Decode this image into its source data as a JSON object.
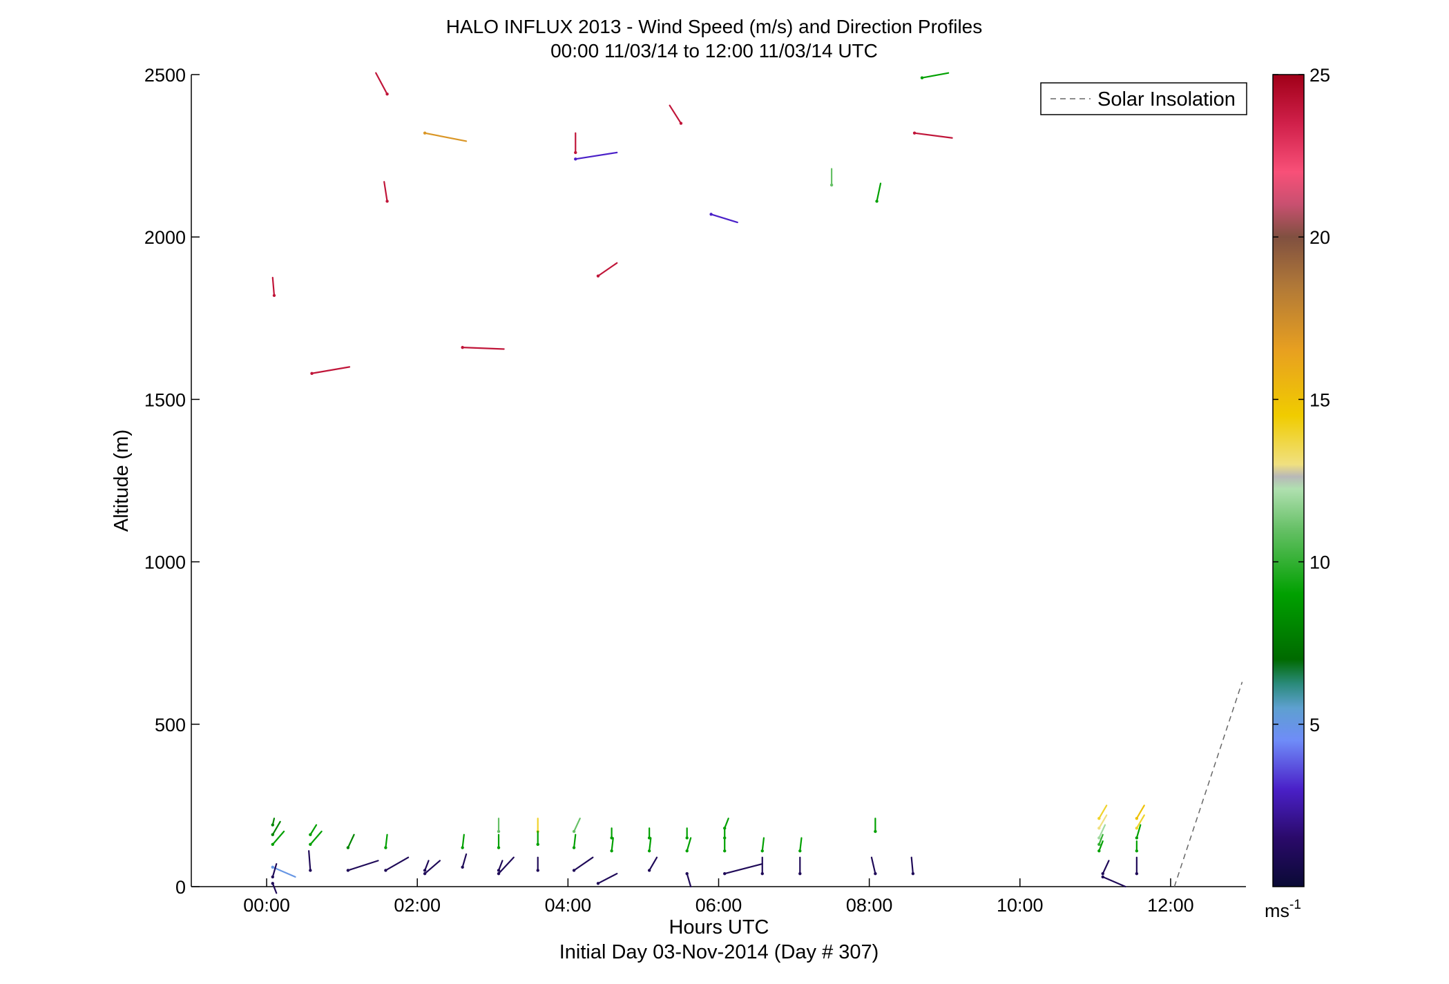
{
  "chart_data": {
    "type": "scatter",
    "title": "HALO INFLUX 2013 - Wind Speed (m/s) and Direction Profiles",
    "subtitle": "00:00 11/03/14 to 12:00 11/03/14  UTC",
    "xlabel": "Hours UTC",
    "xlabel2": "Initial Day 03-Nov-2014 (Day # 307)",
    "ylabel": "Altitude (m)",
    "xlim": [
      -1.0,
      13.0
    ],
    "ylim": [
      0,
      2500
    ],
    "xticks": [
      0,
      2,
      4,
      6,
      8,
      10,
      12
    ],
    "xtick_labels": [
      "00:00",
      "02:00",
      "04:00",
      "06:00",
      "08:00",
      "10:00",
      "12:00"
    ],
    "yticks": [
      0,
      500,
      1000,
      1500,
      2000,
      2500
    ],
    "ytick_labels": [
      "0",
      "500",
      "1000",
      "1500",
      "2000",
      "2500"
    ],
    "legend": {
      "label": "Solar Insolation",
      "position": "top-right"
    },
    "colorbar": {
      "min": 0,
      "max": 25,
      "ticks": [
        5,
        10,
        15,
        20,
        25
      ],
      "tick_labels": [
        "5",
        "10",
        "15",
        "20",
        "25"
      ],
      "unit_label": "ms",
      "unit_exponent": "-1"
    },
    "solar_insolation": [
      [
        12.05,
        0
      ],
      [
        12.95,
        630
      ]
    ],
    "series": [
      {
        "x": 0.1,
        "y": 1820,
        "dx": -0.02,
        "dy": 55,
        "speed": 24
      },
      {
        "x": 0.6,
        "y": 1580,
        "dx": 0.5,
        "dy": 20,
        "speed": 24
      },
      {
        "x": 1.6,
        "y": 2110,
        "dx": -0.04,
        "dy": 60,
        "speed": 24
      },
      {
        "x": 1.6,
        "y": 2440,
        "dx": -0.15,
        "dy": 65,
        "speed": 24
      },
      {
        "x": 2.1,
        "y": 2320,
        "dx": 0.55,
        "dy": -25,
        "speed": 17
      },
      {
        "x": 2.6,
        "y": 1660,
        "dx": 0.55,
        "dy": -5,
        "speed": 24
      },
      {
        "x": 4.1,
        "y": 2260,
        "dx": 0.0,
        "dy": 60,
        "speed": 24
      },
      {
        "x": 4.1,
        "y": 2240,
        "dx": 0.55,
        "dy": 20,
        "speed": 3
      },
      {
        "x": 4.4,
        "y": 1880,
        "dx": 0.25,
        "dy": 40,
        "speed": 24
      },
      {
        "x": 5.5,
        "y": 2350,
        "dx": -0.15,
        "dy": 55,
        "speed": 24
      },
      {
        "x": 5.9,
        "y": 2070,
        "dx": 0.35,
        "dy": -25,
        "speed": 3
      },
      {
        "x": 7.5,
        "y": 2160,
        "dx": 0.0,
        "dy": 50,
        "speed": 11
      },
      {
        "x": 8.1,
        "y": 2110,
        "dx": 0.05,
        "dy": 55,
        "speed": 9
      },
      {
        "x": 8.7,
        "y": 2490,
        "dx": 0.35,
        "dy": 15,
        "speed": 9
      },
      {
        "x": 8.6,
        "y": 2320,
        "dx": 0.5,
        "dy": -15,
        "speed": 24
      },
      {
        "x": 0.08,
        "y": 190,
        "dx": 0.02,
        "dy": 20,
        "speed": 8
      },
      {
        "x": 0.08,
        "y": 160,
        "dx": 0.1,
        "dy": 40,
        "speed": 8
      },
      {
        "x": 0.08,
        "y": 130,
        "dx": 0.15,
        "dy": 40,
        "speed": 9
      },
      {
        "x": 0.08,
        "y": 60,
        "dx": 0.3,
        "dy": -30,
        "speed": 5
      },
      {
        "x": 0.08,
        "y": 30,
        "dx": 0.05,
        "dy": 40,
        "speed": 1
      },
      {
        "x": 0.08,
        "y": 10,
        "dx": 0.05,
        "dy": -30,
        "speed": 1
      },
      {
        "x": 0.58,
        "y": 160,
        "dx": 0.08,
        "dy": 30,
        "speed": 9
      },
      {
        "x": 0.58,
        "y": 130,
        "dx": 0.15,
        "dy": 40,
        "speed": 9
      },
      {
        "x": 0.58,
        "y": 50,
        "dx": -0.02,
        "dy": 60,
        "speed": 1
      },
      {
        "x": 1.08,
        "y": 120,
        "dx": 0.08,
        "dy": 40,
        "speed": 8
      },
      {
        "x": 1.08,
        "y": 50,
        "dx": 0.4,
        "dy": 30,
        "speed": 1
      },
      {
        "x": 1.58,
        "y": 120,
        "dx": 0.02,
        "dy": 40,
        "speed": 9
      },
      {
        "x": 1.58,
        "y": 50,
        "dx": 0.3,
        "dy": 40,
        "speed": 1
      },
      {
        "x": 2.1,
        "y": 40,
        "dx": 0.2,
        "dy": 40,
        "speed": 1
      },
      {
        "x": 2.1,
        "y": 50,
        "dx": 0.05,
        "dy": 30,
        "speed": 1
      },
      {
        "x": 2.6,
        "y": 120,
        "dx": 0.02,
        "dy": 40,
        "speed": 9
      },
      {
        "x": 2.6,
        "y": 60,
        "dx": 0.05,
        "dy": 40,
        "speed": 1
      },
      {
        "x": 3.08,
        "y": 170,
        "dx": 0.0,
        "dy": 40,
        "speed": 11
      },
      {
        "x": 3.08,
        "y": 120,
        "dx": 0.0,
        "dy": 40,
        "speed": 9
      },
      {
        "x": 3.08,
        "y": 40,
        "dx": 0.2,
        "dy": 50,
        "speed": 1
      },
      {
        "x": 3.08,
        "y": 50,
        "dx": 0.05,
        "dy": 30,
        "speed": 1
      },
      {
        "x": 3.6,
        "y": 170,
        "dx": 0.0,
        "dy": 40,
        "speed": 14
      },
      {
        "x": 3.6,
        "y": 130,
        "dx": 0.0,
        "dy": 40,
        "speed": 9
      },
      {
        "x": 3.6,
        "y": 50,
        "dx": 0.0,
        "dy": 40,
        "speed": 1
      },
      {
        "x": 4.08,
        "y": 170,
        "dx": 0.08,
        "dy": 40,
        "speed": 11
      },
      {
        "x": 4.08,
        "y": 120,
        "dx": 0.02,
        "dy": 40,
        "speed": 9
      },
      {
        "x": 4.08,
        "y": 50,
        "dx": 0.25,
        "dy": 40,
        "speed": 1
      },
      {
        "x": 4.4,
        "y": 10,
        "dx": 0.25,
        "dy": 30,
        "speed": 1
      },
      {
        "x": 4.58,
        "y": 150,
        "dx": 0.0,
        "dy": 30,
        "speed": 9
      },
      {
        "x": 4.58,
        "y": 110,
        "dx": 0.02,
        "dy": 40,
        "speed": 9
      },
      {
        "x": 5.08,
        "y": 150,
        "dx": 0.0,
        "dy": 30,
        "speed": 9
      },
      {
        "x": 5.08,
        "y": 110,
        "dx": 0.02,
        "dy": 40,
        "speed": 9
      },
      {
        "x": 5.08,
        "y": 50,
        "dx": 0.1,
        "dy": 40,
        "speed": 1
      },
      {
        "x": 5.58,
        "y": 150,
        "dx": 0.0,
        "dy": 30,
        "speed": 9
      },
      {
        "x": 5.58,
        "y": 110,
        "dx": 0.05,
        "dy": 40,
        "speed": 9
      },
      {
        "x": 5.58,
        "y": 40,
        "dx": 0.05,
        "dy": -40,
        "speed": 1
      },
      {
        "x": 6.08,
        "y": 180,
        "dx": 0.05,
        "dy": 30,
        "speed": 9
      },
      {
        "x": 6.08,
        "y": 150,
        "dx": 0.0,
        "dy": 30,
        "speed": 9
      },
      {
        "x": 6.08,
        "y": 110,
        "dx": 0.0,
        "dy": 40,
        "speed": 9
      },
      {
        "x": 6.08,
        "y": 40,
        "dx": 0.5,
        "dy": 30,
        "speed": 1
      },
      {
        "x": 6.58,
        "y": 110,
        "dx": 0.02,
        "dy": 40,
        "speed": 9
      },
      {
        "x": 6.58,
        "y": 40,
        "dx": 0.0,
        "dy": 50,
        "speed": 1
      },
      {
        "x": 7.08,
        "y": 110,
        "dx": 0.02,
        "dy": 40,
        "speed": 9
      },
      {
        "x": 7.08,
        "y": 40,
        "dx": 0.0,
        "dy": 50,
        "speed": 1
      },
      {
        "x": 8.08,
        "y": 170,
        "dx": 0.0,
        "dy": 40,
        "speed": 9
      },
      {
        "x": 8.08,
        "y": 40,
        "dx": -0.05,
        "dy": 50,
        "speed": 1
      },
      {
        "x": 8.58,
        "y": 40,
        "dx": -0.02,
        "dy": 50,
        "speed": 1
      },
      {
        "x": 11.05,
        "y": 210,
        "dx": 0.1,
        "dy": 40,
        "speed": 14
      },
      {
        "x": 11.05,
        "y": 180,
        "dx": 0.1,
        "dy": 40,
        "speed": 13
      },
      {
        "x": 11.05,
        "y": 150,
        "dx": 0.08,
        "dy": 40,
        "speed": 12
      },
      {
        "x": 11.05,
        "y": 130,
        "dx": 0.05,
        "dy": 30,
        "speed": 10
      },
      {
        "x": 11.05,
        "y": 110,
        "dx": 0.05,
        "dy": 30,
        "speed": 9
      },
      {
        "x": 11.1,
        "y": 40,
        "dx": 0.08,
        "dy": 40,
        "speed": 1
      },
      {
        "x": 11.1,
        "y": 30,
        "dx": 0.3,
        "dy": -30,
        "speed": 1
      },
      {
        "x": 11.55,
        "y": 210,
        "dx": 0.1,
        "dy": 40,
        "speed": 15
      },
      {
        "x": 11.55,
        "y": 180,
        "dx": 0.1,
        "dy": 40,
        "speed": 14
      },
      {
        "x": 11.55,
        "y": 150,
        "dx": 0.05,
        "dy": 40,
        "speed": 9
      },
      {
        "x": 11.55,
        "y": 110,
        "dx": 0.0,
        "dy": 30,
        "speed": 9
      },
      {
        "x": 11.55,
        "y": 40,
        "dx": 0.0,
        "dy": 50,
        "speed": 1
      }
    ]
  }
}
